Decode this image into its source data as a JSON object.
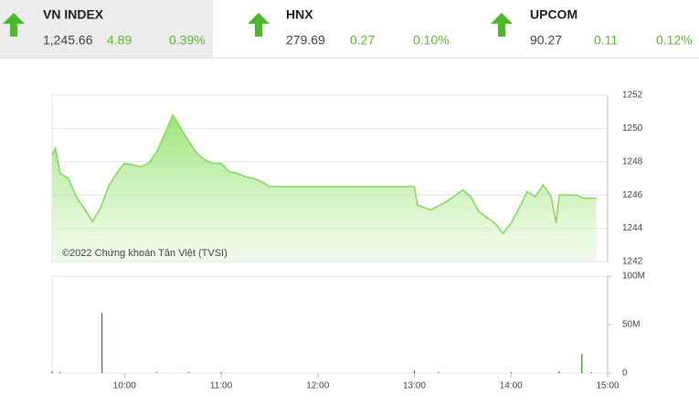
{
  "indices": [
    {
      "name": "VN INDEX",
      "price": "1,245.66",
      "change": 4.89,
      "percent": "0.39%"
    },
    {
      "name": "HNX",
      "price": "279.69",
      "change": 0.27,
      "percent": "0.10%"
    },
    {
      "name": "UPCOM",
      "price": "90.27",
      "change": 0.11,
      "percent": "0.12%"
    }
  ],
  "chart_data": [
    {
      "type": "area",
      "annotation": "©2022 Chứng khoán Tân Việt (TVSI)",
      "color": "#7ed957",
      "x": [
        "9:15",
        "9:17",
        "9:20",
        "9:25",
        "9:30",
        "9:35",
        "9:40",
        "9:45",
        "9:50",
        "9:55",
        "10:00",
        "10:05",
        "10:10",
        "10:15",
        "10:20",
        "10:25",
        "10:30",
        "10:35",
        "10:40",
        "10:45",
        "10:50",
        "10:55",
        "11:00",
        "11:05",
        "11:10",
        "11:15",
        "11:20",
        "11:25",
        "11:30",
        "13:00",
        "13:02",
        "13:10",
        "13:20",
        "13:30",
        "13:35",
        "13:40",
        "13:50",
        "13:55",
        "14:00",
        "14:05",
        "14:10",
        "14:15",
        "14:20",
        "14:25",
        "14:28",
        "14:30",
        "14:40",
        "14:45",
        "14:50",
        "14:53"
      ],
      "values": [
        1248.4,
        1248.8,
        1247.3,
        1247.0,
        1245.9,
        1245.2,
        1244.4,
        1245.2,
        1246.5,
        1247.3,
        1247.9,
        1247.8,
        1247.7,
        1247.9,
        1248.6,
        1249.7,
        1250.8,
        1250.0,
        1249.2,
        1248.5,
        1248.1,
        1247.9,
        1247.9,
        1247.4,
        1247.3,
        1247.1,
        1247.0,
        1246.8,
        1246.5,
        1246.5,
        1245.4,
        1245.1,
        1245.6,
        1246.3,
        1245.9,
        1245.0,
        1244.3,
        1243.7,
        1244.3,
        1245.2,
        1246.2,
        1245.9,
        1246.6,
        1245.9,
        1244.3,
        1246.0,
        1246.0,
        1245.8,
        1245.8,
        1245.8
      ],
      "xlim": [
        "9:15",
        "15:00"
      ],
      "ylim": [
        1242,
        1252
      ],
      "yticks": [
        1242,
        1244,
        1246,
        1248,
        1250,
        1252
      ],
      "grid": true
    },
    {
      "type": "bar",
      "color": "#2e8b1e",
      "x": [
        "9:15",
        "9:20",
        "9:46",
        "10:20",
        "10:40",
        "11:00",
        "13:00",
        "13:15",
        "14:00",
        "14:30",
        "14:44",
        "14:50"
      ],
      "values": [
        2000000,
        1000000,
        62000000,
        1000000,
        1000000,
        1000000,
        3000000,
        1000000,
        1000000,
        2000000,
        20000000,
        1000000
      ],
      "xlim": [
        "9:15",
        "15:00"
      ],
      "xticks": [
        "10:00",
        "11:00",
        "12:00",
        "13:00",
        "14:00",
        "15:00"
      ],
      "ylim": [
        0,
        100000000
      ],
      "yticks": [
        {
          "value": 0,
          "label": "0"
        },
        {
          "value": 50000000,
          "label": "50M"
        },
        {
          "value": 100000000,
          "label": "100M"
        }
      ]
    }
  ]
}
